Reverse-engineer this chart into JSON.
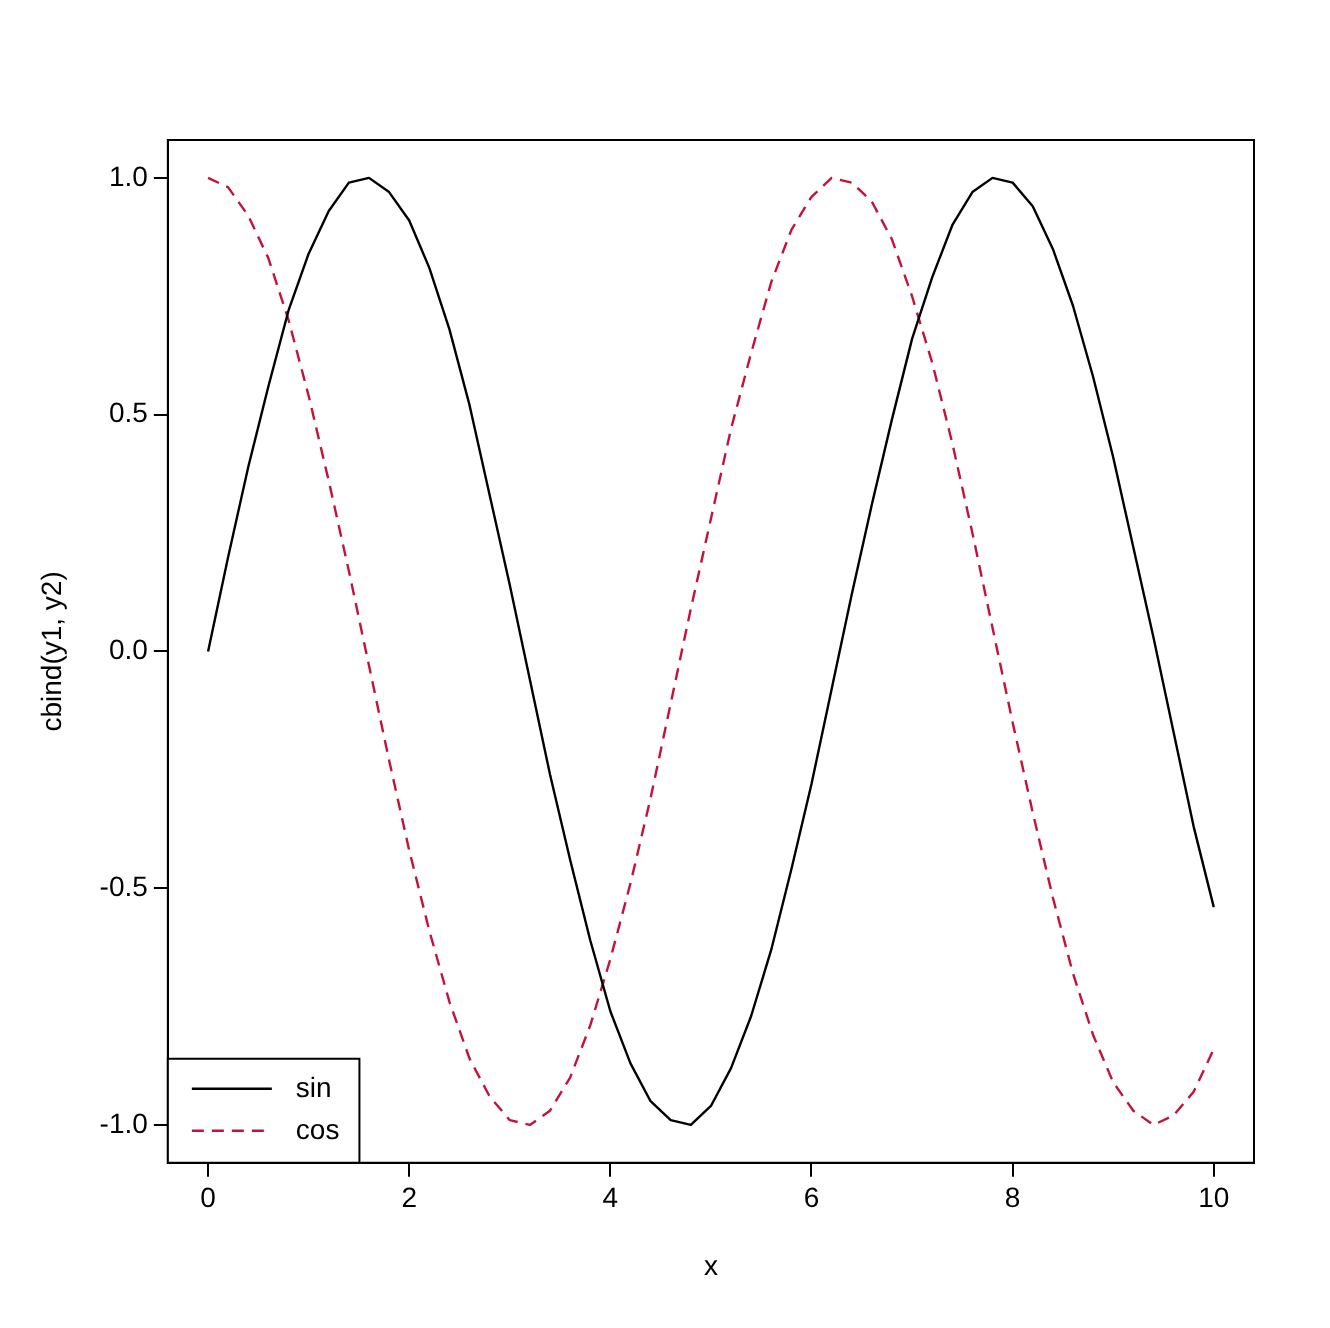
{
  "chart_data": {
    "type": "line",
    "xlabel": "x",
    "ylabel": "cbind(y1, y2)",
    "x": [
      0,
      0.2,
      0.4,
      0.6,
      0.8,
      1,
      1.2,
      1.4,
      1.6,
      1.8,
      2,
      2.2,
      2.4,
      2.6,
      2.8,
      3,
      3.2,
      3.4,
      3.6,
      3.8,
      4,
      4.2,
      4.4,
      4.6,
      4.8,
      5,
      5.2,
      5.4,
      5.6,
      5.8,
      6,
      6.2,
      6.4,
      6.6,
      6.8,
      7,
      7.2,
      7.4,
      7.6,
      7.8,
      8,
      8.2,
      8.4,
      8.6,
      8.8,
      9,
      9.2,
      9.4,
      9.6,
      9.8,
      10
    ],
    "series": [
      {
        "name": "sin",
        "color": "#000000",
        "line_style": "solid",
        "values": [
          0,
          0.2,
          0.39,
          0.56,
          0.72,
          0.84,
          0.93,
          0.99,
          1.0,
          0.97,
          0.91,
          0.81,
          0.68,
          0.52,
          0.33,
          0.14,
          -0.06,
          -0.26,
          -0.44,
          -0.61,
          -0.76,
          -0.87,
          -0.95,
          -0.99,
          -1.0,
          -0.96,
          -0.88,
          -0.77,
          -0.63,
          -0.46,
          -0.28,
          -0.08,
          0.12,
          0.31,
          0.49,
          0.66,
          0.79,
          0.9,
          0.97,
          1.0,
          0.99,
          0.94,
          0.85,
          0.73,
          0.58,
          0.41,
          0.22,
          0.03,
          -0.17,
          -0.37,
          -0.54
        ]
      },
      {
        "name": "cos",
        "color": "#c4123c",
        "line_style": "dashed",
        "values": [
          1,
          0.98,
          0.92,
          0.83,
          0.7,
          0.54,
          0.36,
          0.17,
          -0.03,
          -0.23,
          -0.42,
          -0.59,
          -0.74,
          -0.86,
          -0.94,
          -0.99,
          -1.0,
          -0.97,
          -0.9,
          -0.79,
          -0.65,
          -0.49,
          -0.31,
          -0.11,
          0.09,
          0.28,
          0.47,
          0.63,
          0.78,
          0.89,
          0.96,
          1.0,
          0.99,
          0.95,
          0.87,
          0.75,
          0.61,
          0.44,
          0.25,
          0.05,
          -0.15,
          -0.34,
          -0.52,
          -0.68,
          -0.81,
          -0.91,
          -0.97,
          -1.0,
          -0.98,
          -0.93,
          -0.84
        ]
      }
    ],
    "xlim": [
      -0.4,
      10.4
    ],
    "ylim": [
      -1.08,
      1.08
    ],
    "xticks": [
      0,
      2,
      4,
      6,
      8,
      10
    ],
    "yticks": [
      {
        "value": -1,
        "label": "-1.0"
      },
      {
        "value": -0.5,
        "label": "-0.5"
      },
      {
        "value": 0,
        "label": "0.0"
      },
      {
        "value": 0.5,
        "label": "0.5"
      },
      {
        "value": 1,
        "label": "1.0"
      }
    ],
    "grid": false,
    "legend": "bottom left"
  }
}
